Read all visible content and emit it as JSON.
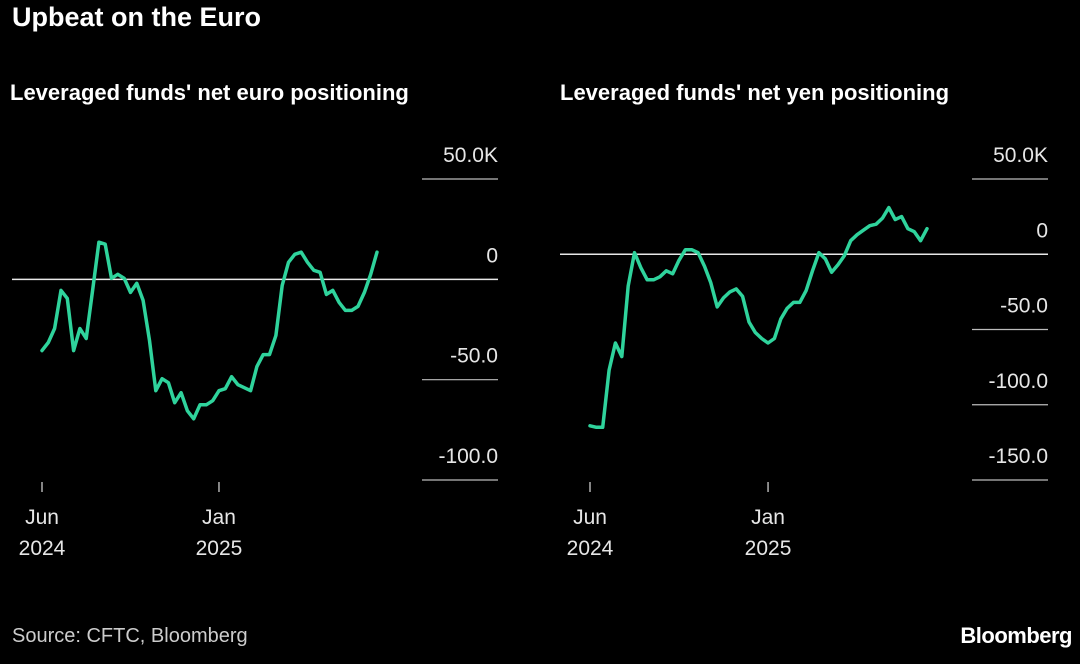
{
  "title": "Upbeat on the Euro",
  "source": "Source: CFTC, Bloomberg",
  "brand": "Bloomberg",
  "chart_data": [
    {
      "type": "line",
      "title": "Leveraged funds' net euro positioning",
      "categories": [
        "Jun 2024",
        null,
        null,
        null,
        null,
        null,
        null,
        null,
        null,
        null,
        null,
        null,
        null,
        null,
        null,
        null,
        null,
        null,
        null,
        null,
        null,
        null,
        null,
        null,
        null,
        null,
        null,
        null,
        "Jan 2025",
        null,
        null,
        null,
        null,
        null,
        null,
        null,
        null,
        null,
        null,
        null,
        null,
        null,
        null,
        null,
        null,
        null,
        null,
        null,
        null,
        null,
        null,
        null,
        null,
        null
      ],
      "series": [
        {
          "color": "#2fd39c",
          "values": [
            -35.5,
            -31.5,
            -24.5,
            -5.5,
            -9.5,
            -35.5,
            -24.5,
            -29.5,
            -5.5,
            18.5,
            17.5,
            0.5,
            2.5,
            0.5,
            -6.5,
            -2,
            -10.5,
            -30.5,
            -55.5,
            -49.5,
            -51.5,
            -61.5,
            -56.5,
            -65.5,
            -69.5,
            -62.5,
            -62.5,
            -60.5,
            -55.5,
            -54.5,
            -48.5,
            -52.5,
            -54,
            -55.5,
            -43.5,
            -37.5,
            -37.5,
            -28,
            -3,
            8.5,
            12.5,
            13.5,
            8.5,
            4.5,
            3.5,
            -7.5,
            -5.5,
            -11.5,
            -15.5,
            -15.5,
            -13.5,
            -6.5,
            2.5,
            13.5
          ]
        }
      ],
      "ylim": [
        -100,
        50
      ],
      "yticks": [
        {
          "value": 50,
          "label": "50.0K"
        },
        0,
        {
          "value": -50,
          "label": "-50.0"
        },
        {
          "value": -100,
          "label": "-100.0"
        }
      ]
    },
    {
      "type": "line",
      "title": "Leveraged funds' net yen positioning",
      "categories": [
        "Jun 2024",
        null,
        null,
        null,
        null,
        null,
        null,
        null,
        null,
        null,
        null,
        null,
        null,
        null,
        null,
        null,
        null,
        null,
        null,
        null,
        null,
        null,
        null,
        null,
        null,
        null,
        null,
        null,
        "Jan 2025",
        null,
        null,
        null,
        null,
        null,
        null,
        null,
        null,
        null,
        null,
        null,
        null,
        null,
        null,
        null,
        null,
        null,
        null,
        null,
        null,
        null,
        null,
        null,
        null,
        null
      ],
      "series": [
        {
          "color": "#2fd39c",
          "values": [
            -114,
            -115,
            -115,
            -77,
            -59,
            -68,
            -21,
            1,
            -9,
            -17,
            -17,
            -15,
            -11,
            -13,
            -4,
            3,
            3,
            1,
            -8,
            -19,
            -35,
            -29,
            -25,
            -23,
            -28,
            -45,
            -52,
            -56,
            -59,
            -56,
            -43,
            -36,
            -32,
            -32,
            -24,
            -11,
            1,
            -3,
            -12,
            -7,
            -1,
            9,
            13,
            16,
            19,
            20,
            24,
            31,
            23,
            25,
            17,
            15,
            9,
            17
          ]
        }
      ],
      "ylim": [
        -150,
        50
      ],
      "yticks": [
        {
          "value": 50,
          "label": "50.0K"
        },
        0,
        {
          "value": -50,
          "label": "-50.0"
        },
        {
          "value": -100,
          "label": "-100.0"
        },
        {
          "value": -150,
          "label": "-150.0"
        }
      ]
    }
  ]
}
